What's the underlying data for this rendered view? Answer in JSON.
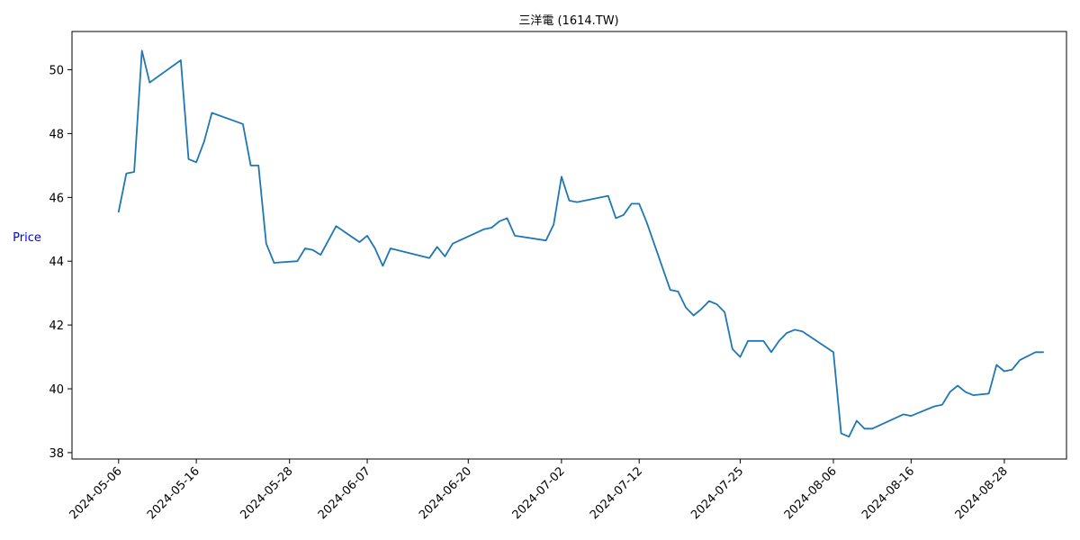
{
  "colors": {
    "line": "#1f77b4",
    "axis": "#000000",
    "ylabel": "#0000ff",
    "background": "#ffffff"
  },
  "chart_data": {
    "type": "line",
    "title": "三洋電 (1614.TW)",
    "xlabel": "",
    "ylabel": "Price",
    "grid": false,
    "legend": "none",
    "x_range": [
      "2024-04-30",
      "2024-09-05"
    ],
    "ylim": [
      37.8,
      51.2
    ],
    "y_ticks": [
      38,
      40,
      42,
      44,
      46,
      48,
      50
    ],
    "x_ticks": [
      "2024-05-06",
      "2024-05-16",
      "2024-05-28",
      "2024-06-07",
      "2024-06-20",
      "2024-07-02",
      "2024-07-12",
      "2024-07-25",
      "2024-08-06",
      "2024-08-16",
      "2024-08-28"
    ],
    "series": [
      {
        "x": [
          "2024-05-06",
          "2024-05-07",
          "2024-05-08",
          "2024-05-09",
          "2024-05-10",
          "2024-05-14",
          "2024-05-15",
          "2024-05-16",
          "2024-05-17",
          "2024-05-18",
          "2024-05-22",
          "2024-05-23",
          "2024-05-24",
          "2024-05-25",
          "2024-05-26",
          "2024-05-29",
          "2024-05-30",
          "2024-05-31",
          "2024-06-01",
          "2024-06-03",
          "2024-06-06",
          "2024-06-07",
          "2024-06-08",
          "2024-06-09",
          "2024-06-10",
          "2024-06-15",
          "2024-06-16",
          "2024-06-17",
          "2024-06-18",
          "2024-06-22",
          "2024-06-23",
          "2024-06-24",
          "2024-06-25",
          "2024-06-26",
          "2024-06-30",
          "2024-07-01",
          "2024-07-02",
          "2024-07-03",
          "2024-07-04",
          "2024-07-08",
          "2024-07-09",
          "2024-07-10",
          "2024-07-11",
          "2024-07-12",
          "2024-07-13",
          "2024-07-16",
          "2024-07-17",
          "2024-07-18",
          "2024-07-19",
          "2024-07-20",
          "2024-07-21",
          "2024-07-22",
          "2024-07-23",
          "2024-07-24",
          "2024-07-25",
          "2024-07-26",
          "2024-07-27",
          "2024-07-28",
          "2024-07-29",
          "2024-07-30",
          "2024-07-31",
          "2024-08-01",
          "2024-08-02",
          "2024-08-06",
          "2024-08-07",
          "2024-08-08",
          "2024-08-09",
          "2024-08-10",
          "2024-08-11",
          "2024-08-15",
          "2024-08-16",
          "2024-08-19",
          "2024-08-20",
          "2024-08-21",
          "2024-08-22",
          "2024-08-23",
          "2024-08-24",
          "2024-08-26",
          "2024-08-27",
          "2024-08-28",
          "2024-08-29",
          "2024-08-30",
          "2024-09-01",
          "2024-09-02"
        ],
        "values": [
          45.55,
          46.75,
          46.8,
          50.6,
          49.6,
          50.3,
          47.2,
          47.1,
          47.75,
          48.65,
          48.3,
          47.0,
          47.0,
          44.55,
          43.95,
          44.0,
          44.4,
          44.35,
          44.2,
          45.1,
          44.6,
          44.8,
          44.4,
          43.85,
          44.4,
          44.1,
          44.45,
          44.15,
          44.55,
          45.0,
          45.05,
          45.25,
          45.35,
          44.8,
          44.65,
          45.15,
          46.65,
          45.9,
          45.85,
          46.05,
          45.35,
          45.45,
          45.8,
          45.8,
          45.2,
          43.1,
          43.05,
          42.55,
          42.3,
          42.5,
          42.75,
          42.65,
          42.4,
          41.25,
          41.0,
          41.5,
          41.5,
          41.5,
          41.15,
          41.5,
          41.75,
          41.85,
          41.8,
          41.15,
          38.6,
          38.5,
          39.0,
          38.75,
          38.75,
          39.2,
          39.15,
          39.45,
          39.5,
          39.9,
          40.1,
          39.9,
          39.8,
          39.85,
          40.75,
          40.55,
          40.6,
          40.9,
          41.15,
          41.15
        ]
      }
    ]
  }
}
